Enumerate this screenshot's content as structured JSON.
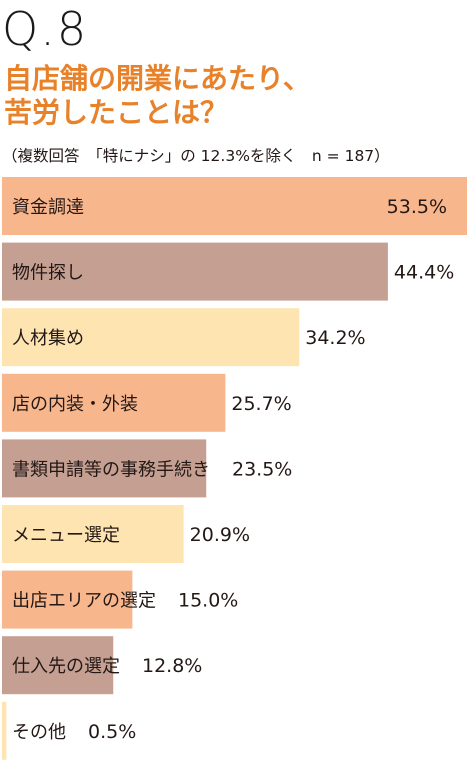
{
  "question_number": "Q.8",
  "title_lines": [
    "自店舗の開業にあたり、",
    "苦労したことは？"
  ],
  "subtitle": "（複数回答　「特にナシ」の 12.3%を除く　n = 187）",
  "colors": {
    "orange": "#f8b68d",
    "brown": "#c49f92",
    "cream": "#fde4b0",
    "title": "#e8822a"
  },
  "chart_data": {
    "type": "bar",
    "orientation": "horizontal",
    "unit": "%",
    "xlim": [
      0,
      53.5
    ],
    "grid": false,
    "legend": "none",
    "categories": [
      "資金調達",
      "物件探し",
      "人材集め",
      "店の内装・外装",
      "書類申請等の事務手続き",
      "メニュー選定",
      "出店エリアの選定",
      "仕入先の選定",
      "その他"
    ],
    "values": [
      53.5,
      44.4,
      34.2,
      25.7,
      23.5,
      20.9,
      15.0,
      12.8,
      0.5
    ],
    "value_labels": [
      "53.5%",
      "44.4%",
      "34.2%",
      "25.7%",
      "23.5%",
      "20.9%",
      "15.0%",
      "12.8%",
      "0.5%"
    ],
    "bar_colors": [
      "#f8b68d",
      "#c49f92",
      "#fde4b0",
      "#f8b68d",
      "#c49f92",
      "#fde4b0",
      "#f8b68d",
      "#c49f92",
      "#fde4b0"
    ]
  }
}
